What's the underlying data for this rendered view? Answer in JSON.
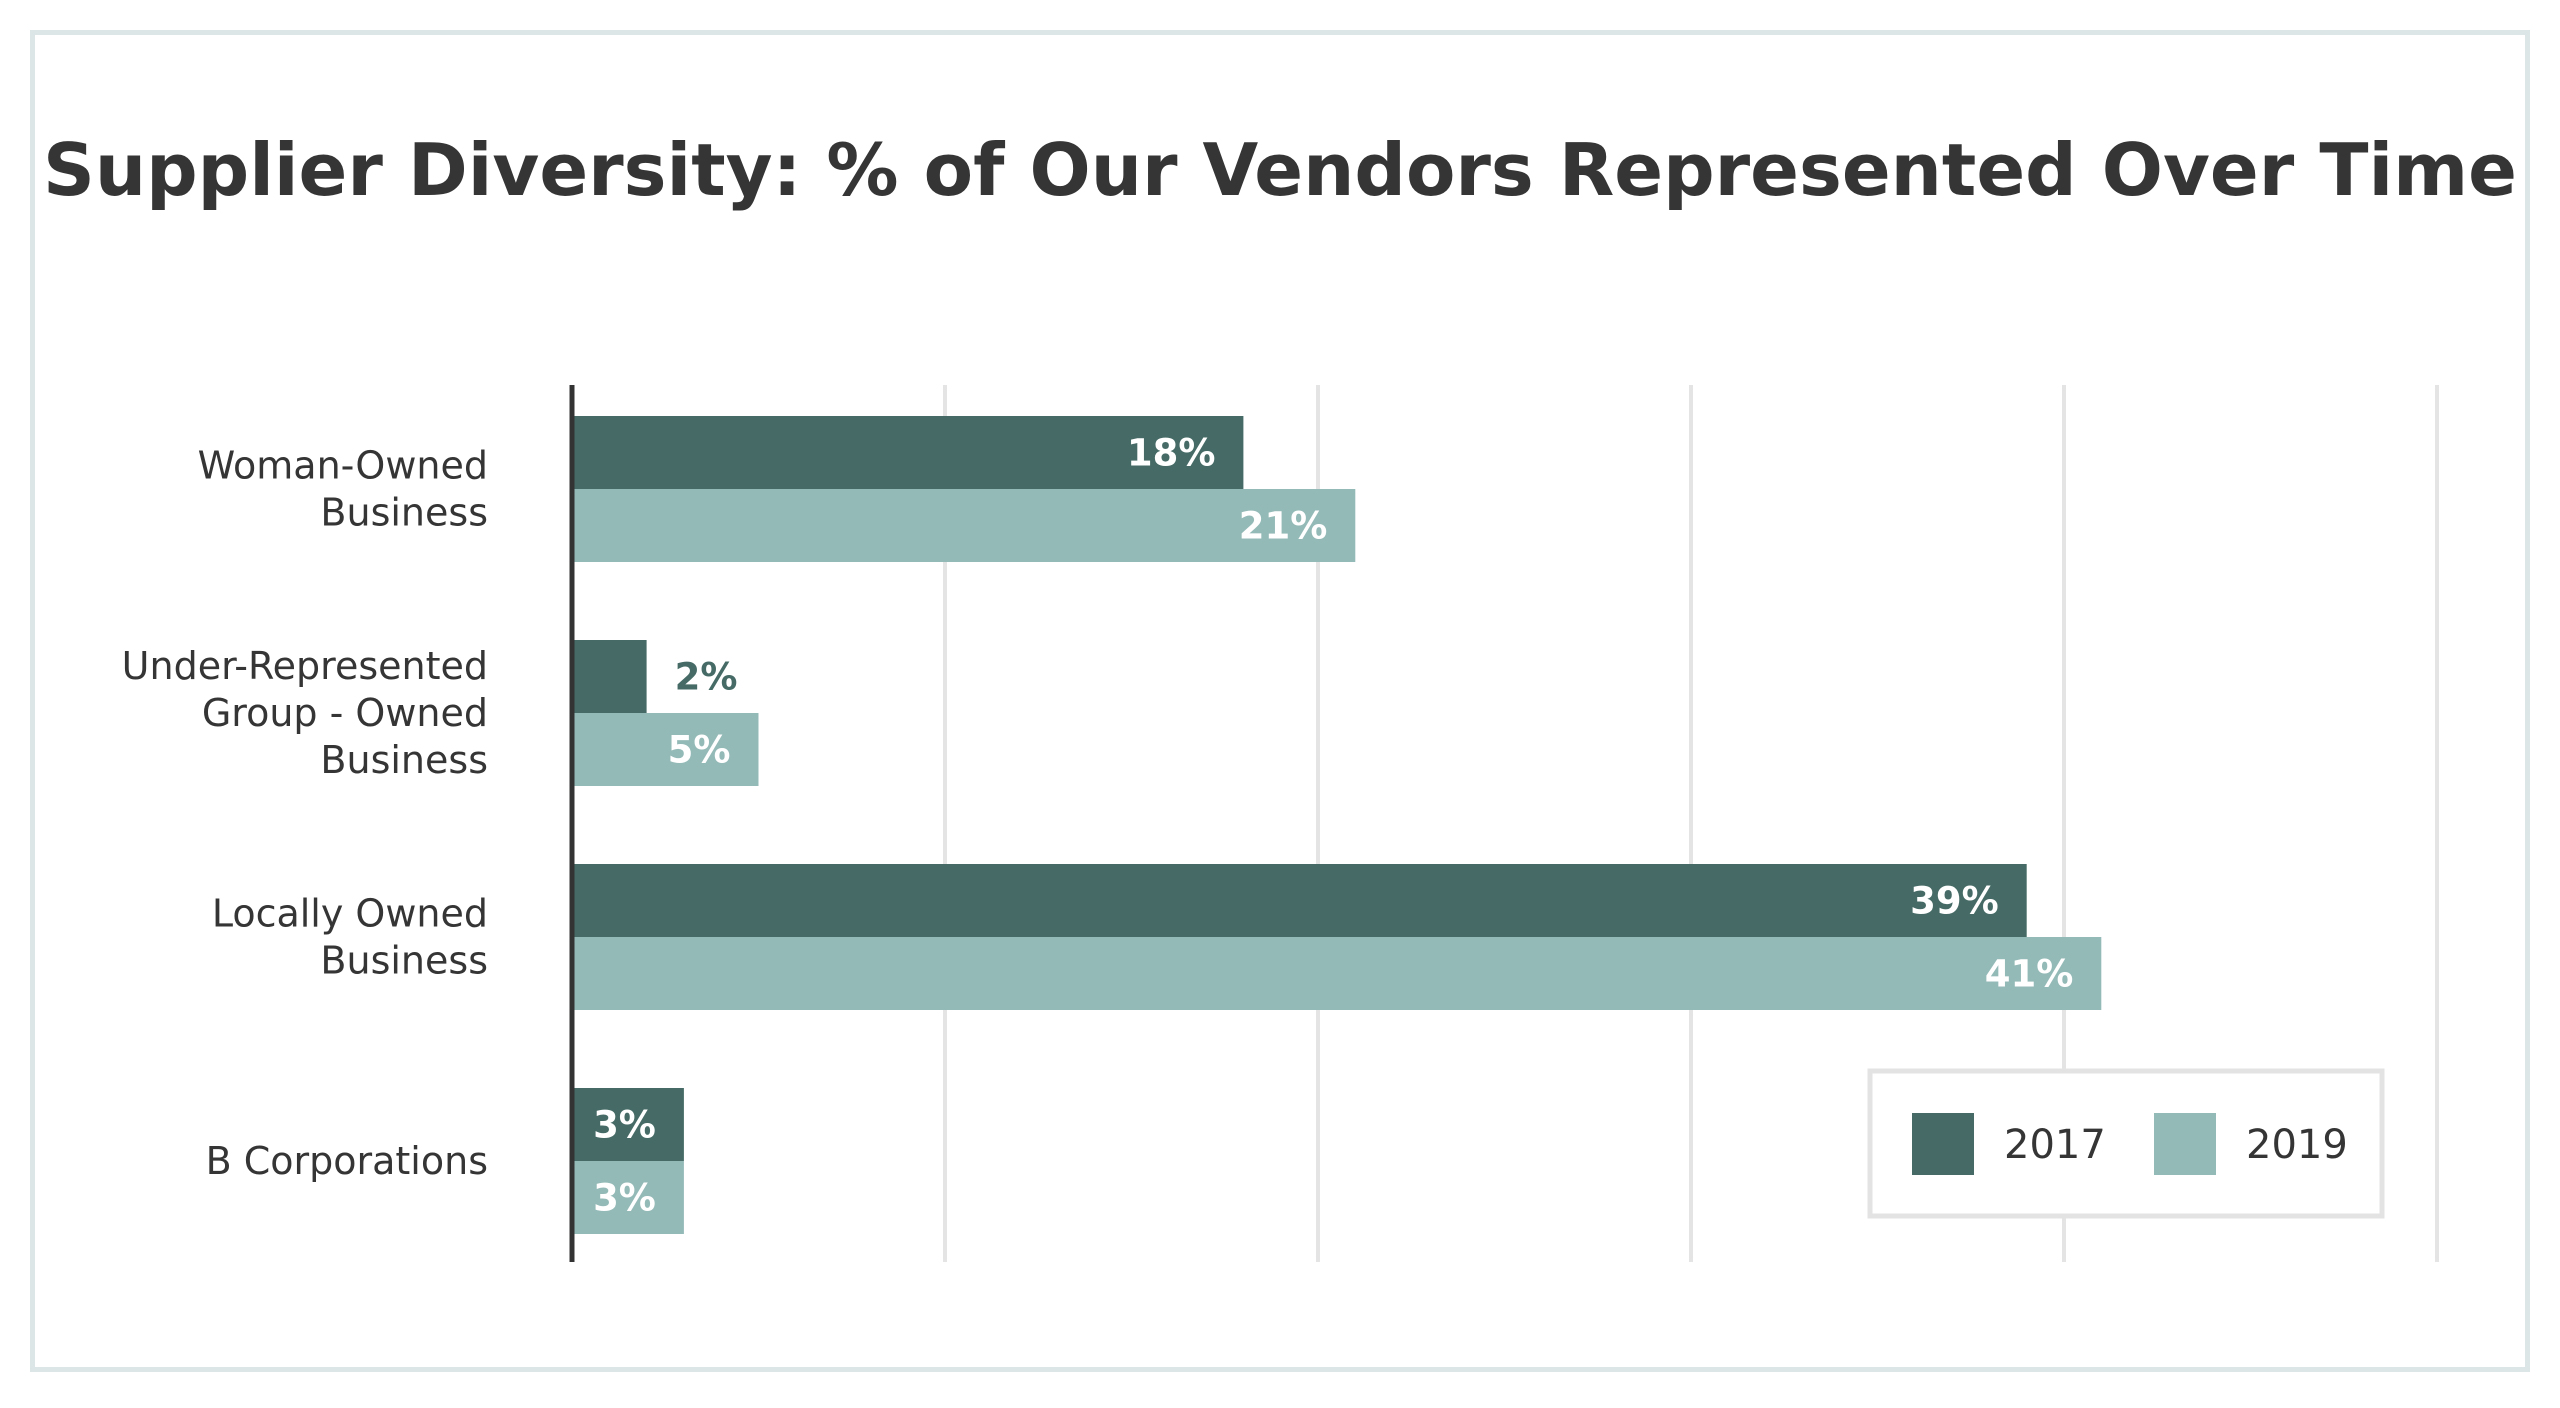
{
  "chart_data": {
    "type": "bar",
    "orientation": "horizontal",
    "title": "Supplier Diversity: % of Our Vendors Represented Over Time",
    "categories": [
      [
        "Woman-Owned",
        "Business"
      ],
      [
        "Under-Represented",
        "Group - Owned",
        "Business"
      ],
      [
        "Locally Owned",
        "Business"
      ],
      [
        "B Corporations"
      ]
    ],
    "series": [
      {
        "name": "2017",
        "color": "#466b66",
        "values": [
          18,
          2,
          39,
          3
        ],
        "labels": [
          "18%",
          "2%",
          "39%",
          "3%"
        ]
      },
      {
        "name": "2019",
        "color": "#94bab7",
        "values": [
          21,
          5,
          41,
          3
        ],
        "labels": [
          "21%",
          "5%",
          "41%",
          "3%"
        ]
      }
    ],
    "xlim": [
      0,
      50
    ],
    "gridlines": [
      10,
      20,
      30,
      40,
      50
    ],
    "grid": true,
    "legend_position": "bottom-right",
    "colors": {
      "grid": "#e4e4e4",
      "axis": "#333333",
      "label_outside": "#466b66",
      "label_inside": "#ffffff"
    }
  }
}
